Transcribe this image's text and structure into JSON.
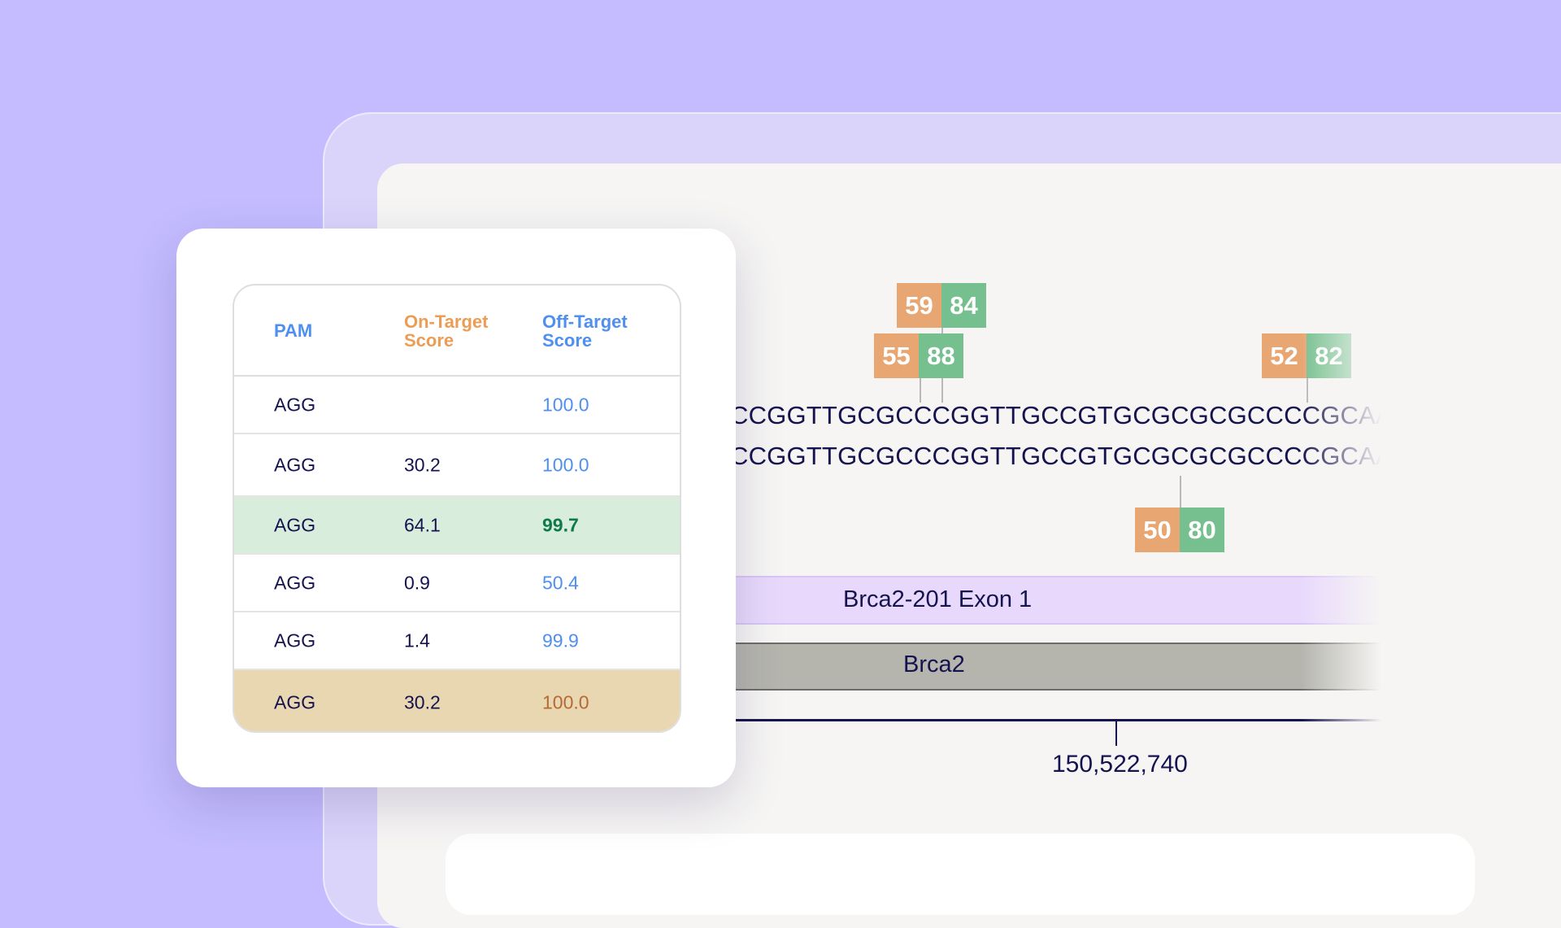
{
  "colors": {
    "background": "#c4bcff",
    "on_target": "#e8a673",
    "off_target": "#75c08e",
    "exon": "#e8d9fc",
    "gene": "#b5b5ae",
    "text_dark": "#15134f",
    "text_blue": "#4e8ff0"
  },
  "genome_view": {
    "sequence_top": "CCGGTTGCGCCCGGTTGCCGTGCGCGCGCCCCGCAAAAAC",
    "sequence_bottom": "CCGGTTGCGCCCGGTTGCCGTGCGCGCGCCCCGCAAAAAC",
    "badges": [
      {
        "on": "59",
        "off": "84"
      },
      {
        "on": "55",
        "off": "88"
      },
      {
        "on": "52",
        "off": "82"
      },
      {
        "on": "50",
        "off": "80"
      }
    ],
    "exon_label": "Brca2-201 Exon 1",
    "gene_label": "Brca2",
    "axis_label": "150,522,740"
  },
  "table": {
    "headers": {
      "pam": "PAM",
      "on_line1": "On-Target",
      "on_line2": "Score",
      "off_line1": "Off-Target",
      "off_line2": "Score"
    },
    "rows": [
      {
        "pam": "AGG",
        "on": "",
        "off": "100.0"
      },
      {
        "pam": "AGG",
        "on": "30.2",
        "off": "100.0"
      },
      {
        "pam": "AGG",
        "on": "64.1",
        "off": "99.7"
      },
      {
        "pam": "AGG",
        "on": "0.9",
        "off": "50.4"
      },
      {
        "pam": "AGG",
        "on": "1.4",
        "off": "99.9"
      },
      {
        "pam": "AGG",
        "on": "30.2",
        "off": "100.0"
      }
    ]
  }
}
